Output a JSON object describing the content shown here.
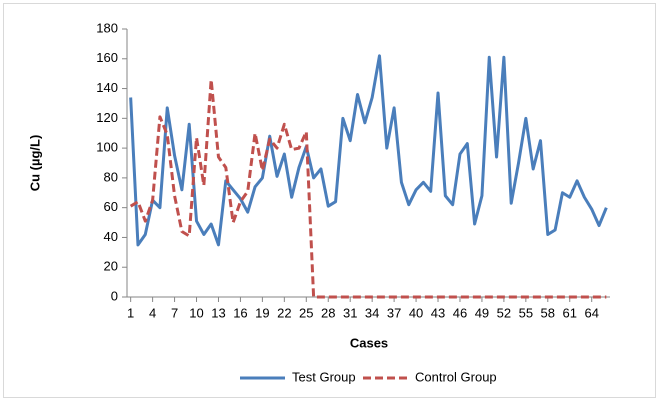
{
  "chart_data": {
    "type": "line",
    "x_label": "Cases",
    "y_label": "Cu (µg/L)",
    "x": [
      1,
      2,
      3,
      4,
      5,
      6,
      7,
      8,
      9,
      10,
      11,
      12,
      13,
      14,
      15,
      16,
      17,
      18,
      19,
      20,
      21,
      22,
      23,
      24,
      25,
      26,
      27,
      28,
      29,
      30,
      31,
      32,
      33,
      34,
      35,
      36,
      37,
      38,
      39,
      40,
      41,
      42,
      43,
      44,
      45,
      46,
      47,
      48,
      49,
      50,
      51,
      52,
      53,
      54,
      55,
      56,
      57,
      58,
      59,
      60,
      61,
      62,
      63,
      64,
      65,
      66
    ],
    "xlim": [
      0.5,
      66.5
    ],
    "xticks": [
      1,
      4,
      7,
      10,
      13,
      16,
      19,
      22,
      25,
      28,
      31,
      34,
      37,
      40,
      43,
      46,
      49,
      52,
      55,
      58,
      61,
      64
    ],
    "ylim": [
      0,
      180
    ],
    "yticks": [
      0,
      20,
      40,
      60,
      80,
      100,
      120,
      140,
      160,
      180
    ],
    "legend": "bottom",
    "series": [
      {
        "name": "Test Group",
        "color": "#4a7ebb",
        "dashed": false,
        "values": [
          134,
          35,
          42,
          65,
          60,
          127,
          95,
          72,
          116,
          51,
          42,
          49,
          35,
          78,
          72,
          66,
          57,
          74,
          80,
          108,
          81,
          96,
          67,
          87,
          101,
          80,
          86,
          61,
          64,
          120,
          105,
          136,
          117,
          134,
          162,
          100,
          127,
          77,
          62,
          72,
          77,
          71,
          137,
          68,
          62,
          96,
          103,
          49,
          68,
          161,
          94,
          161,
          63,
          90,
          120,
          86,
          105,
          42,
          45,
          70,
          67,
          78,
          67,
          59,
          48,
          60
        ]
      },
      {
        "name": "Control Group",
        "color": "#c0504d",
        "dashed": true,
        "values": [
          61,
          64,
          51,
          65,
          121,
          109,
          68,
          44,
          41,
          107,
          75,
          146,
          94,
          87,
          50,
          64,
          71,
          110,
          85,
          106,
          100,
          116,
          99,
          100,
          111,
          0,
          0,
          0,
          0,
          0,
          0,
          0,
          0,
          0,
          0,
          0,
          0,
          0,
          0,
          0,
          0,
          0,
          0,
          0,
          0,
          0,
          0,
          0,
          0,
          0,
          0,
          0,
          0,
          0,
          0,
          0,
          0,
          0,
          0,
          0,
          0,
          0,
          0,
          0,
          0,
          0
        ]
      }
    ]
  }
}
